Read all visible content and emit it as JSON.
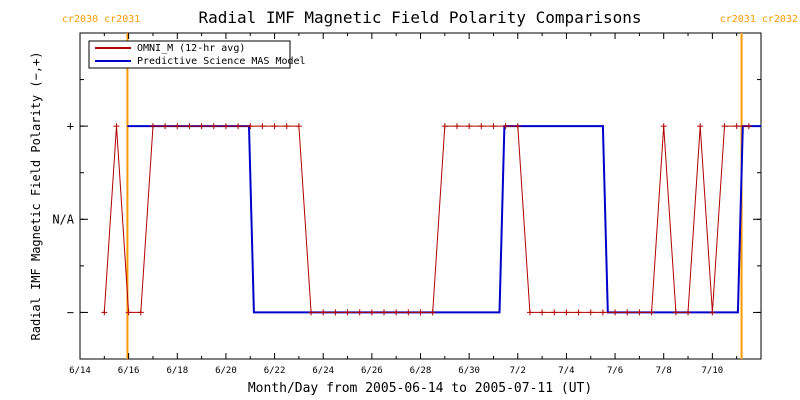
{
  "chart_data": {
    "type": "line",
    "title": "Radial IMF Magnetic Field Polarity Comparisons",
    "xlabel": "Month/Day from 2005-06-14 to 2005-07-11 (UT)",
    "ylabel": "Radial IMF Magnetic Field Polarity (−,+)",
    "y_ticks": [
      {
        "value": 1,
        "label": "+"
      },
      {
        "value": 0,
        "label": "N/A"
      },
      {
        "value": -1,
        "label": "−"
      }
    ],
    "ylim": [
      -1.5,
      2.0
    ],
    "x_ticks": [
      {
        "day": 0,
        "label": "6/14"
      },
      {
        "day": 2,
        "label": "6/16"
      },
      {
        "day": 4,
        "label": "6/18"
      },
      {
        "day": 6,
        "label": "6/20"
      },
      {
        "day": 8,
        "label": "6/22"
      },
      {
        "day": 10,
        "label": "6/24"
      },
      {
        "day": 12,
        "label": "6/26"
      },
      {
        "day": 14,
        "label": "6/28"
      },
      {
        "day": 16,
        "label": "6/30"
      },
      {
        "day": 18,
        "label": "7/2"
      },
      {
        "day": 20,
        "label": "7/4"
      },
      {
        "day": 22,
        "label": "7/6"
      },
      {
        "day": 24,
        "label": "7/8"
      },
      {
        "day": 26,
        "label": "7/10"
      }
    ],
    "xlim_days": [
      0,
      28
    ],
    "carrington_markers": [
      {
        "day": 1.95,
        "label": "cr2030 cr2031"
      },
      {
        "day": 27.2,
        "label": "cr2031 cr2032"
      }
    ],
    "legend_position": "top-left",
    "colors": {
      "omni": "#b00000",
      "mas": "#0000cc",
      "carrington": "#ff9900"
    },
    "series": [
      {
        "name": "OMNI_M (12-hr avg)",
        "marker": "plus",
        "x_days": [
          1.0,
          1.5,
          2.0,
          2.5,
          3.0,
          3.5,
          4.0,
          4.5,
          5.0,
          5.5,
          6.0,
          6.5,
          7.0,
          7.5,
          8.0,
          8.5,
          9.0,
          9.5,
          10.0,
          10.5,
          11.0,
          11.5,
          12.0,
          12.5,
          13.0,
          13.5,
          14.0,
          14.5,
          15.0,
          15.5,
          16.0,
          16.5,
          17.0,
          17.5,
          18.0,
          18.5,
          19.0,
          19.5,
          20.0,
          20.5,
          21.0,
          21.5,
          22.0,
          22.5,
          23.0,
          23.5,
          24.0,
          24.5,
          25.0,
          25.5,
          26.0,
          26.5,
          27.0,
          27.5
        ],
        "values": [
          -1,
          1,
          -1,
          -1,
          1,
          1,
          1,
          1,
          1,
          1,
          1,
          1,
          1,
          1,
          1,
          1,
          1,
          -1,
          -1,
          -1,
          -1,
          -1,
          -1,
          -1,
          -1,
          -1,
          -1,
          -1,
          1,
          1,
          1,
          1,
          1,
          1,
          1,
          -1,
          -1,
          -1,
          -1,
          -1,
          -1,
          -1,
          -1,
          -1,
          -1,
          -1,
          1,
          -1,
          -1,
          1,
          -1,
          1,
          1,
          1
        ]
      },
      {
        "name": "Predictive Science MAS Model",
        "marker": "none",
        "points": [
          [
            1.95,
            1
          ],
          [
            6.95,
            1
          ],
          [
            7.15,
            -1
          ],
          [
            17.25,
            -1
          ],
          [
            17.45,
            1
          ],
          [
            21.5,
            1
          ],
          [
            21.7,
            -1
          ],
          [
            27.05,
            -1
          ],
          [
            27.25,
            1
          ],
          [
            28.0,
            1
          ]
        ]
      }
    ]
  }
}
